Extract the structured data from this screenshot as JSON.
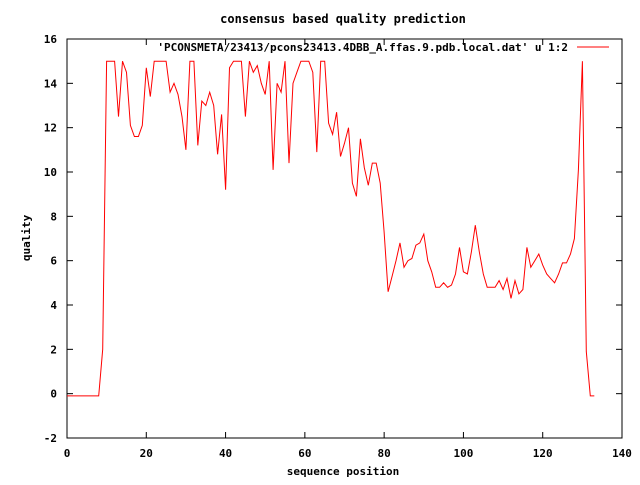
{
  "chart_data": {
    "type": "line",
    "title": "consensus based quality prediction",
    "xlabel": "sequence position",
    "ylabel": "quality",
    "xlim": [
      0,
      140
    ],
    "ylim": [
      -2,
      16
    ],
    "x_ticks": [
      0,
      20,
      40,
      60,
      80,
      100,
      120,
      140
    ],
    "y_ticks": [
      -2,
      0,
      2,
      4,
      6,
      8,
      10,
      12,
      14,
      16
    ],
    "x_tick_labels": [
      "0",
      "20",
      "40",
      "60",
      "80",
      "100",
      "120",
      "140"
    ],
    "y_tick_labels": [
      "-2",
      "0",
      "2",
      "4",
      "6",
      "8",
      "10",
      "12",
      "14",
      "16"
    ],
    "grid": false,
    "legend_position": "top-right",
    "series": [
      {
        "name": "'PCONSMETA/23413/pcons23413.4DBB_A.ffas.9.pdb.local.dat' u 1:2",
        "color": "#ff0000",
        "x": [
          0,
          1,
          2,
          3,
          4,
          5,
          6,
          7,
          8,
          9,
          10,
          11,
          12,
          13,
          14,
          15,
          16,
          17,
          18,
          19,
          20,
          21,
          22,
          23,
          24,
          25,
          26,
          27,
          28,
          29,
          30,
          31,
          32,
          33,
          34,
          35,
          36,
          37,
          38,
          39,
          40,
          41,
          42,
          43,
          44,
          45,
          46,
          47,
          48,
          49,
          50,
          51,
          52,
          53,
          54,
          55,
          56,
          57,
          58,
          59,
          60,
          61,
          62,
          63,
          64,
          65,
          66,
          67,
          68,
          69,
          70,
          71,
          72,
          73,
          74,
          75,
          76,
          77,
          78,
          79,
          80,
          81,
          82,
          83,
          84,
          85,
          86,
          87,
          88,
          89,
          90,
          91,
          92,
          93,
          94,
          95,
          96,
          97,
          98,
          99,
          100,
          101,
          102,
          103,
          104,
          105,
          106,
          107,
          108,
          109,
          110,
          111,
          112,
          113,
          114,
          115,
          116,
          117,
          118,
          119,
          120,
          121,
          122,
          123,
          124,
          125,
          126,
          127,
          128,
          129,
          130,
          131,
          132,
          133
        ],
        "y": [
          -0.1,
          -0.1,
          -0.1,
          -0.1,
          -0.1,
          -0.1,
          -0.1,
          -0.1,
          -0.1,
          2,
          15,
          15,
          15,
          12.5,
          15,
          14.5,
          12.1,
          11.6,
          11.6,
          12.1,
          14.7,
          13.4,
          15,
          15,
          15,
          15,
          13.6,
          14,
          13.5,
          12.5,
          11,
          15,
          15,
          11.2,
          13.2,
          13,
          13.6,
          13,
          10.8,
          12.6,
          9.2,
          14.7,
          15,
          15,
          15,
          12.5,
          15,
          14.5,
          14.8,
          14,
          13.5,
          15,
          10.1,
          14,
          13.6,
          15,
          10.4,
          14,
          14.5,
          15,
          15,
          15,
          14.5,
          10.9,
          15,
          15,
          12.2,
          11.7,
          12.7,
          10.7,
          11.3,
          12,
          9.5,
          8.9,
          11.5,
          10.2,
          9.4,
          10.4,
          10.4,
          9.5,
          7.3,
          4.6,
          5.3,
          6,
          6.8,
          5.7,
          6,
          6.1,
          6.7,
          6.8,
          7.2,
          6,
          5.5,
          4.8,
          4.8,
          5,
          4.8,
          4.9,
          5.4,
          6.6,
          5.5,
          5.4,
          6.4,
          7.6,
          6.4,
          5.4,
          4.8,
          4.8,
          4.8,
          5.1,
          4.7,
          5.2,
          4.3,
          5.1,
          4.5,
          4.7,
          6.6,
          5.7,
          6,
          6.3,
          5.8,
          5.4,
          5.2,
          5,
          5.4,
          5.9,
          5.9,
          6.3,
          7,
          10.1,
          15,
          1.9,
          -0.1,
          -0.1
        ]
      }
    ]
  }
}
